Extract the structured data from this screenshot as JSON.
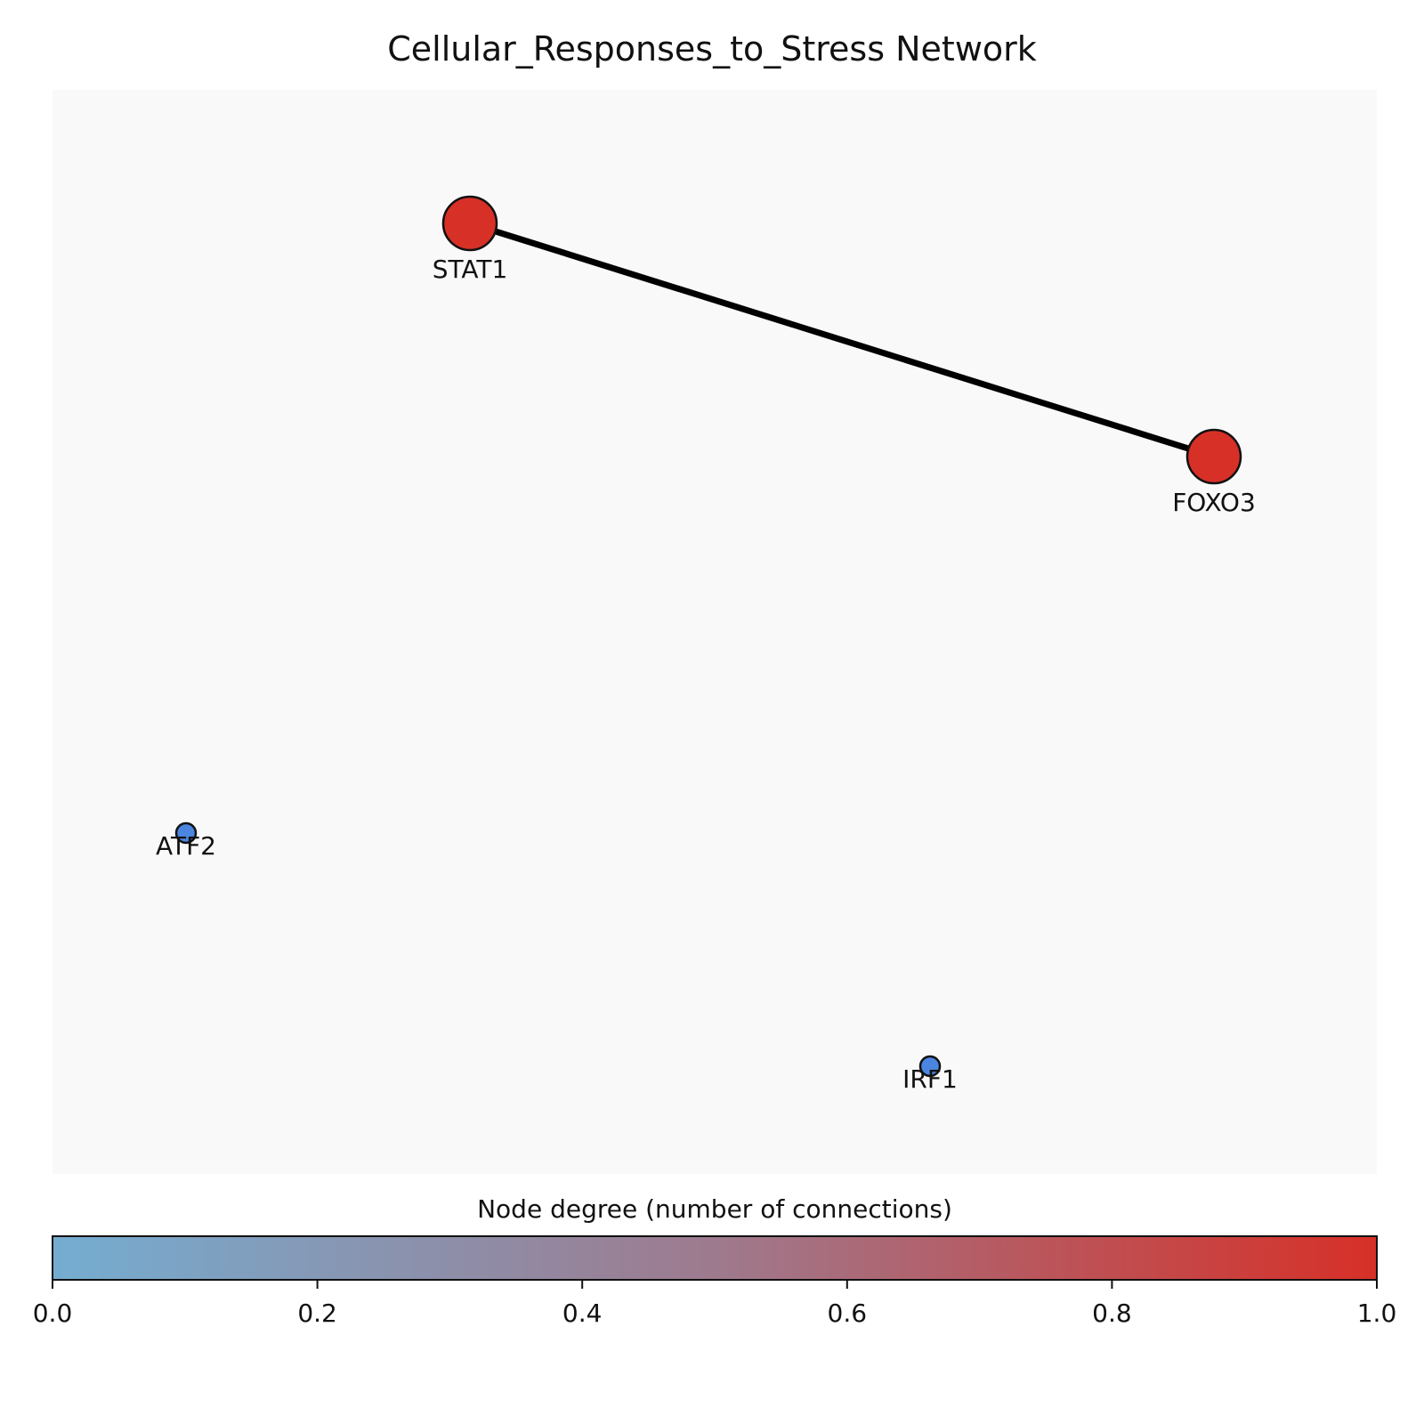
{
  "title": "Cellular_Responses_to_Stress Network",
  "colors": {
    "plot_background": "#f9f9f9",
    "edge": "#000000",
    "node_high": "#d73027",
    "node_low": "#4a86e0",
    "colormap_low": "#74add1",
    "colormap_mid": "#9e7a8e",
    "colormap_high": "#d73027",
    "node_outline": "#111111"
  },
  "nodes": [
    {
      "id": "STAT1",
      "label": "STAT1",
      "degree": 1,
      "normalized_degree": 1.0
    },
    {
      "id": "FOXO3",
      "label": "FOXO3",
      "degree": 1,
      "normalized_degree": 1.0
    },
    {
      "id": "ATF2",
      "label": "ATF2",
      "degree": 0,
      "normalized_degree": 0.0
    },
    {
      "id": "IRF1",
      "label": "IRF1",
      "degree": 0,
      "normalized_degree": 0.0
    }
  ],
  "edges": [
    {
      "source": "STAT1",
      "target": "FOXO3"
    }
  ],
  "colorbar": {
    "label": "Node degree (number of connections)",
    "range": [
      0.0,
      1.0
    ],
    "ticks": [
      "0.0",
      "0.2",
      "0.4",
      "0.6",
      "0.8",
      "1.0"
    ]
  }
}
